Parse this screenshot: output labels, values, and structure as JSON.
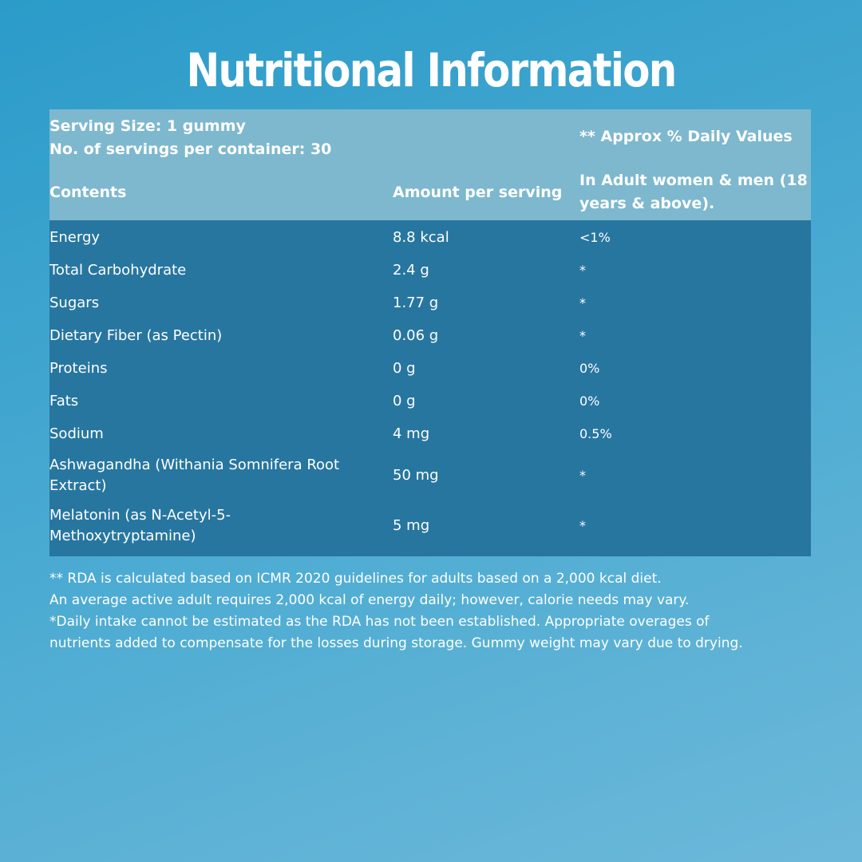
{
  "title": "Nutritional Information",
  "header": {
    "serving_size": "Serving Size: 1 gummy",
    "servings_per_container": "No. of servings per container: 30",
    "daily_values": "** Approx % Daily Values",
    "col_contents": "Contents",
    "col_amount": "Amount per serving",
    "col_adult_line1": "In Adult women & men (18",
    "col_adult_line2": "years & above)."
  },
  "rows": [
    {
      "content": "Energy",
      "amount": "8.8 kcal",
      "dv": "<1%"
    },
    {
      "content": "Total Carbohydrate",
      "amount": "2.4 g",
      "dv": "*"
    },
    {
      "content": "Sugars",
      "amount": "1.77 g",
      "dv": "*"
    },
    {
      "content": "Dietary Fiber (as Pectin)",
      "amount": "0.06 g",
      "dv": "*"
    },
    {
      "content": "Proteins",
      "amount": "0 g",
      "dv": "0%"
    },
    {
      "content": "Fats",
      "amount": "0 g",
      "dv": "0%"
    },
    {
      "content": "Sodium",
      "amount": "4 mg",
      "dv": "0.5%"
    },
    {
      "content_line1": "Ashwagandha (Withania Somnifera Root",
      "content_line2": "Extract)",
      "amount": "50 mg",
      "dv": "*"
    },
    {
      "content_line1": "Melatonin (as N-Acetyl-5-",
      "content_line2": "Methoxytryptamine)",
      "amount": "5 mg",
      "dv": "*"
    }
  ],
  "footnotes": [
    "** RDA is calculated based on ICMR 2020 guidelines for adults based on a 2,000 kcal diet.",
    "An average active adult requires 2,000 kcal of energy daily; however, calorie needs may vary.",
    "*Daily intake cannot be estimated as the RDA has not been established. Appropriate overages of",
    "nutrients added to compensate for the losses during storage. Gummy weight may vary due to drying."
  ],
  "colors": {
    "header_bg": "#7db8ce",
    "body_bg": "#2776a0",
    "background": "#47a9d1"
  }
}
